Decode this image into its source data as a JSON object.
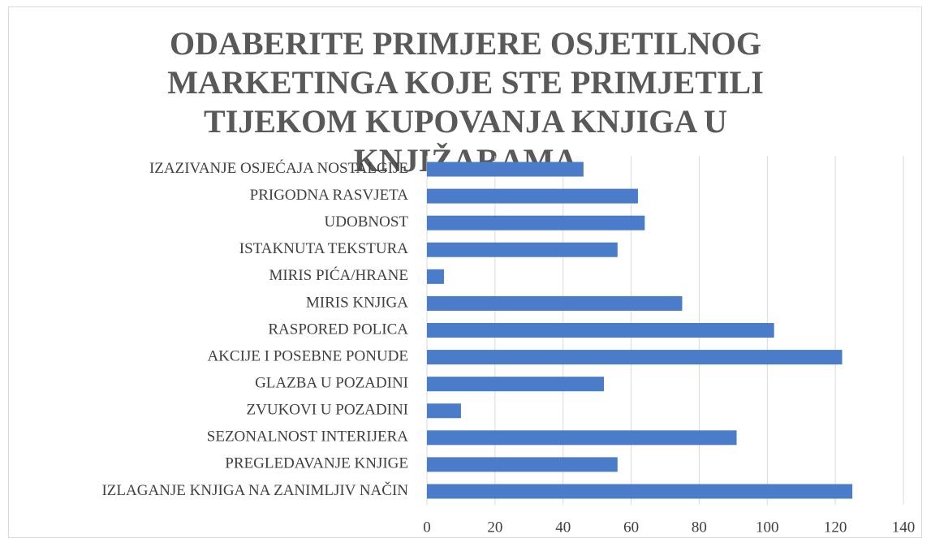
{
  "chart_data": {
    "type": "bar",
    "orientation": "horizontal",
    "title": "ODABERITE PRIMJERE OSJETILNOG MARKETINGA KOJE STE PRIMJETILI TIJEKOM KUPOVANJA KNJIGA U KNJIŽARAMA",
    "categories": [
      "IZAZIVANJE OSJEĆAJA NOSTALGIJE",
      "PRIGODNA RASVJETA",
      "UDOBNOST",
      "ISTAKNUTA TEKSTURA",
      "MIRIS PIĆA/HRANE",
      "MIRIS KNJIGA",
      "RASPORED POLICA",
      "AKCIJE I POSEBNE PONUDE",
      "GLAZBA U POZADINI",
      "ZVUKOVI U POZADINI",
      "SEZONALNOST INTERIJERA",
      "PREGLEDAVANJE KNJIGE",
      "IZLAGANJE KNJIGA NA ZANIMLJIV NAČIN"
    ],
    "values": [
      46,
      62,
      64,
      56,
      5,
      75,
      102,
      122,
      52,
      10,
      91,
      56,
      125
    ],
    "color": "#4a7cc9",
    "xlim": [
      0,
      140
    ],
    "xticks": [
      0,
      20,
      40,
      60,
      80,
      100,
      120,
      140
    ],
    "grid": true
  }
}
